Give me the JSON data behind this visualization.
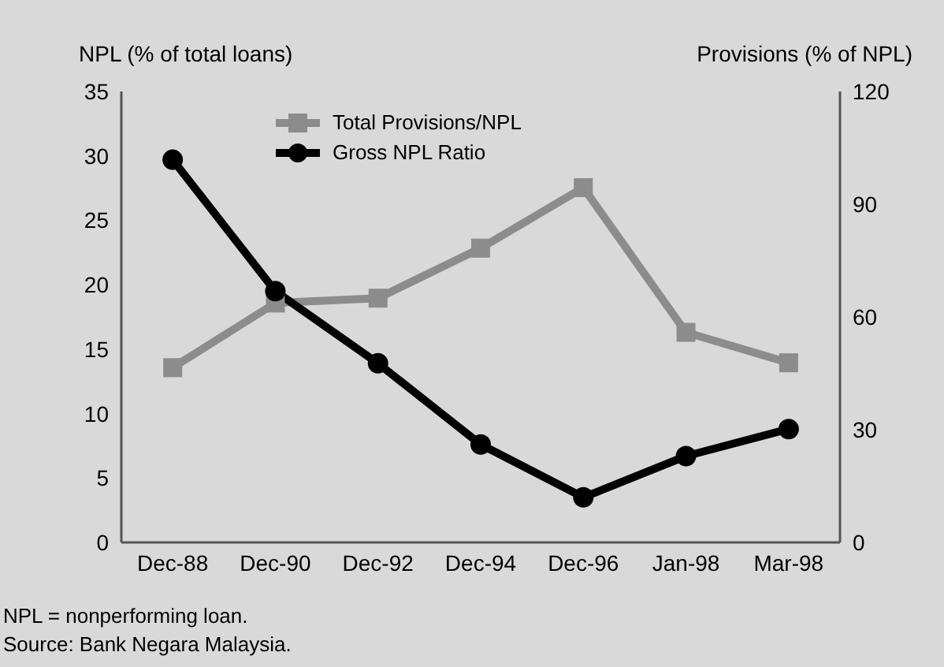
{
  "chart_data": {
    "type": "line",
    "ylabel": "NPL (% of total loans)",
    "y2label": "Provisions (% of NPL)",
    "categories": [
      "Dec-88",
      "Dec-90",
      "Dec-92",
      "Dec-94",
      "Dec-96",
      "Jan-98",
      "Mar-98"
    ],
    "series": [
      {
        "name": "Total Provisions/NPL",
        "color": "#8c8c8c",
        "axis": "y2",
        "marker": "square",
        "values": [
          46.5,
          63.7,
          65,
          78.3,
          94.4,
          55.9,
          47.8
        ]
      },
      {
        "name": "Gross NPL Ratio",
        "color": "#000000",
        "marker": "circle",
        "values": [
          29.7,
          19.5,
          13.9,
          7.6,
          3.5,
          6.7,
          8.8
        ]
      }
    ],
    "ylim": [
      0,
      35
    ],
    "yticks": [
      0,
      5,
      10,
      15,
      20,
      25,
      30,
      35
    ],
    "y2lim": [
      0,
      120
    ],
    "y2ticks": [
      0,
      30,
      60,
      90,
      120
    ],
    "grid": false,
    "legend": "top left",
    "line_style": "solid",
    "annotations": [
      "NPL = nonperforming loan.",
      "Source: Bank Negara Malaysia."
    ]
  }
}
